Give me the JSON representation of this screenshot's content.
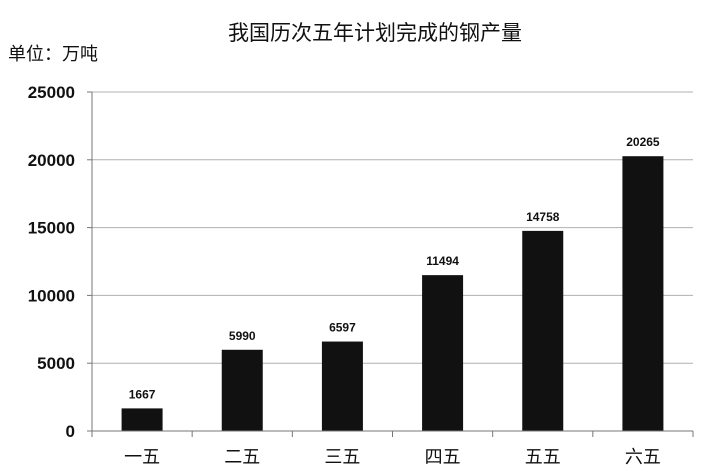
{
  "chart_data": {
    "type": "bar",
    "title": "我国历次五年计划完成的钢产量",
    "unit_label": "单位：万吨",
    "categories": [
      "一五",
      "二五",
      "三五",
      "四五",
      "五五",
      "六五"
    ],
    "values": [
      1667,
      5990,
      6597,
      11494,
      14758,
      20265
    ],
    "data_labels": [
      "1667",
      "5990",
      "6597",
      "11494",
      "14758",
      "20265"
    ],
    "yticks": [
      "0",
      "5000",
      "10000",
      "15000",
      "20000",
      "25000"
    ],
    "ylim": [
      0,
      25000
    ],
    "grid": true,
    "legend": "none",
    "bar_color": "#111111",
    "grid_color": "#b0b0b0"
  }
}
